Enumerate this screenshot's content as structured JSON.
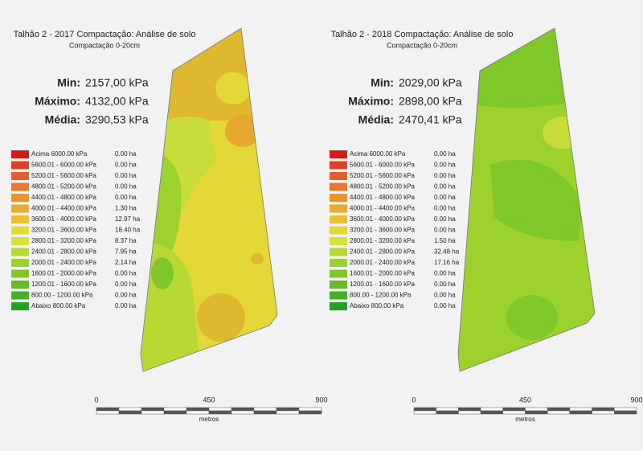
{
  "legend_colors": [
    "#d7191c",
    "#e0402a",
    "#e45e2e",
    "#e8782f",
    "#eb9331",
    "#e9aa2e",
    "#e6c22f",
    "#e4d838",
    "#d8e03a",
    "#b8d934",
    "#9dd12e",
    "#80c72a",
    "#63bd28",
    "#46b026",
    "#22a124"
  ],
  "panels": [
    {
      "title": "Talhão 2 - 2017 Compactação: Análise de solo",
      "subtitle": "Compactação 0-20cm",
      "stats": [
        {
          "label": "Min:",
          "value": "2157,00 kPa"
        },
        {
          "label": "Máximo:",
          "value": "4132,00 kPa"
        },
        {
          "label": "Média:",
          "value": "3290,53 kPa"
        }
      ],
      "legend": [
        {
          "range": "Acima 6000.00 kPa",
          "area": "0.00 ha"
        },
        {
          "range": "5600.01 - 6000.00 kPa",
          "area": "0.00 ha"
        },
        {
          "range": "5200.01 - 5600.00 kPa",
          "area": "0.00 ha"
        },
        {
          "range": "4800.01 - 5200.00 kPa",
          "area": "0.00 ha"
        },
        {
          "range": "4400.01 - 4800.00 kPa",
          "area": "0.00 ha"
        },
        {
          "range": "4000.01 - 4400.00 kPa",
          "area": "1.30 ha"
        },
        {
          "range": "3600.01 - 4000.00 kPa",
          "area": "12.97 ha"
        },
        {
          "range": "3200.01 - 3600.00 kPa",
          "area": "18.40 ha"
        },
        {
          "range": "2800.01 - 3200.00 kPa",
          "area": "8.37 ha"
        },
        {
          "range": "2400.01 - 2800.00 kPa",
          "area": "7.95 ha"
        },
        {
          "range": "2000.01 - 2400.00 kPa",
          "area": "2.14 ha"
        },
        {
          "range": "1600.01 - 2000.00 kPa",
          "area": "0.00 ha"
        },
        {
          "range": "1200.01 - 1600.00 kPa",
          "area": "0.00 ha"
        },
        {
          "range": "800.00 - 1200.00 kPa",
          "area": "0.00 ha"
        },
        {
          "range": "Abaixo 800.00 kPa",
          "area": "0.00 ha"
        }
      ],
      "scale": {
        "labels": [
          "0",
          "450",
          "900"
        ],
        "unit": "metros"
      }
    },
    {
      "title": "Talhão 2 - 2018 Compactação: Análise de solo",
      "subtitle": "Compactação 0-20cm",
      "stats": [
        {
          "label": "Min:",
          "value": "2029,00 kPa"
        },
        {
          "label": "Máximo:",
          "value": "2898,00 kPa"
        },
        {
          "label": "Média:",
          "value": "2470,41 kPa"
        }
      ],
      "legend": [
        {
          "range": "Acima 6000.00 kPa",
          "area": "0.00 ha"
        },
        {
          "range": "5600.01 - 6000.00 kPa",
          "area": "0.00 ha"
        },
        {
          "range": "5200.01 - 5600.00 kPa",
          "area": "0.00 ha"
        },
        {
          "range": "4800.01 - 5200.00 kPa",
          "area": "0.00 ha"
        },
        {
          "range": "4400.01 - 4800.00 kPa",
          "area": "0.00 ha"
        },
        {
          "range": "4000.01 - 4400.00 kPa",
          "area": "0.00 ha"
        },
        {
          "range": "3600.01 - 4000.00 kPa",
          "area": "0.00 ha"
        },
        {
          "range": "3200.01 - 3600.00 kPa",
          "area": "0.00 ha"
        },
        {
          "range": "2800.01 - 3200.00 kPa",
          "area": "1.50 ha"
        },
        {
          "range": "2400.01 - 2800.00 kPa",
          "area": "32.48 ha"
        },
        {
          "range": "2000.01 - 2400.00 kPa",
          "area": "17.16 ha"
        },
        {
          "range": "1600.01 - 2000.00 kPa",
          "area": "0.00 ha"
        },
        {
          "range": "1200.01 - 1600.00 kPa",
          "area": "0.00 ha"
        },
        {
          "range": "800.00 - 1200.00 kPa",
          "area": "0.00 ha"
        },
        {
          "range": "Abaixo 800.00 kPa",
          "area": "0.00 ha"
        }
      ],
      "scale": {
        "labels": [
          "0",
          "450",
          "900"
        ],
        "unit": "metros"
      }
    }
  ]
}
